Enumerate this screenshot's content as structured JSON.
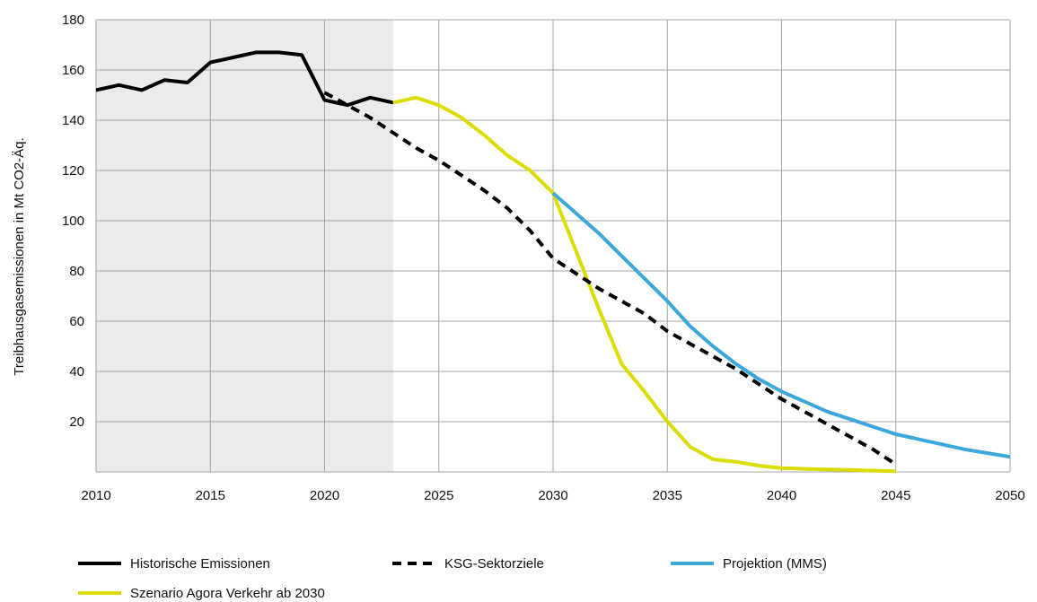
{
  "chart_data": {
    "type": "line",
    "title": "",
    "xlabel": "",
    "ylabel": "Treibhausgasemissionen in Mt CO2-Äq.",
    "xlim": [
      2010,
      2050
    ],
    "ylim": [
      0,
      180
    ],
    "x_ticks": [
      "2010",
      "2015",
      "2020",
      "2025",
      "2030",
      "2035",
      "2040",
      "2045",
      "2050"
    ],
    "y_ticks": [
      "20",
      "40",
      "60",
      "80",
      "100",
      "120",
      "140",
      "160",
      "180"
    ],
    "grid": true,
    "shaded_region": {
      "x_from": 2010,
      "x_to": 2023,
      "color": "#ebebeb"
    },
    "legend_position": "bottom",
    "series": [
      {
        "name": "Historische Emissionen",
        "color": "#000000",
        "style": "solid",
        "x": [
          2010,
          2011,
          2012,
          2013,
          2014,
          2015,
          2016,
          2017,
          2018,
          2019,
          2020,
          2021,
          2022,
          2023
        ],
        "y": [
          152,
          154,
          152,
          156,
          155,
          163,
          165,
          167,
          167,
          166,
          148,
          146,
          149,
          147
        ]
      },
      {
        "name": "KSG-Sektorziele",
        "color": "#000000",
        "style": "dashed",
        "x": [
          2020,
          2021,
          2022,
          2023,
          2024,
          2025,
          2026,
          2027,
          2028,
          2029,
          2030,
          2031,
          2032,
          2033,
          2034,
          2035,
          2036,
          2037,
          2038,
          2039,
          2040,
          2041,
          2042,
          2043,
          2044,
          2045
        ],
        "y": [
          151,
          146,
          141,
          135,
          129,
          124,
          118,
          112,
          105,
          96,
          85,
          79,
          73,
          68,
          63,
          56,
          51,
          46,
          41,
          35,
          29,
          24,
          19,
          14,
          9,
          3
        ]
      },
      {
        "name": "Projektion (MMS)",
        "color": "#3aa8da",
        "style": "solid",
        "x": [
          2030,
          2031,
          2032,
          2033,
          2034,
          2035,
          2036,
          2037,
          2038,
          2039,
          2040,
          2041,
          2042,
          2043,
          2044,
          2045,
          2046,
          2047,
          2048,
          2049,
          2050
        ],
        "y": [
          111,
          103,
          95,
          86,
          77,
          68,
          58,
          50,
          43,
          37,
          32,
          28,
          24,
          21,
          18,
          15,
          13,
          11,
          9,
          7.5,
          6
        ]
      },
      {
        "name": "Szenario Agora Verkehr ab 2030",
        "color": "#dcdc00",
        "style": "solid",
        "x": [
          2023,
          2024,
          2025,
          2026,
          2027,
          2028,
          2029,
          2030,
          2031,
          2032,
          2033,
          2034,
          2035,
          2036,
          2037,
          2038,
          2039,
          2040,
          2041,
          2042,
          2043,
          2044,
          2045
        ],
        "y": [
          147,
          149,
          146,
          141,
          134,
          126,
          120,
          111,
          88,
          65,
          43,
          32,
          20,
          10,
          5,
          4,
          2.5,
          1.5,
          1.2,
          1,
          0.8,
          0.5,
          0.3
        ]
      }
    ]
  }
}
